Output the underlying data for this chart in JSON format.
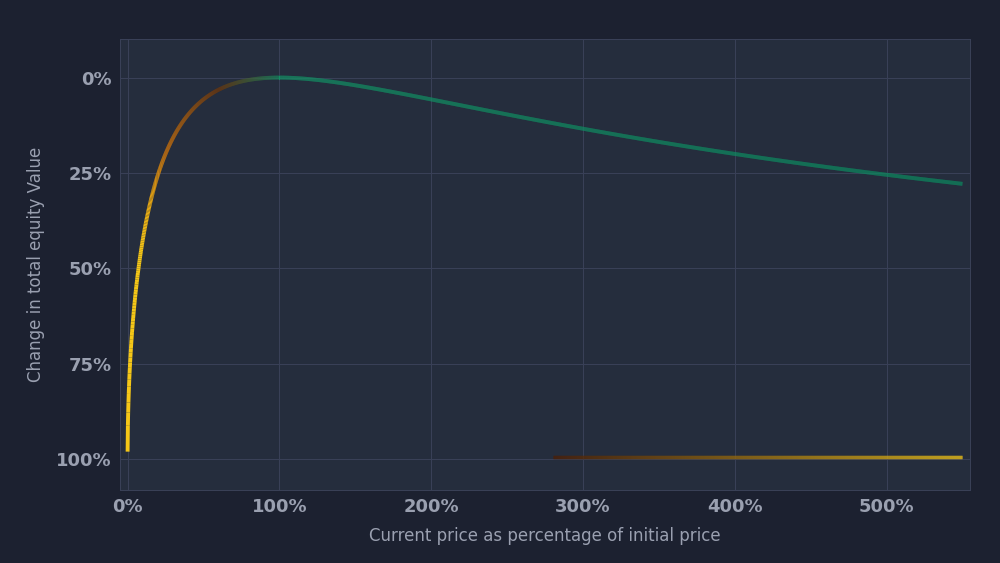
{
  "background_color": "#1c2130",
  "plot_bg_color": "#252d3d",
  "grid_color": "#3a4158",
  "text_color": "#9aa0b0",
  "xlabel": "Current price as percentage of initial price",
  "ylabel": "Change in total equity Value",
  "xticks": [
    0,
    1,
    2,
    3,
    4,
    5
  ],
  "xtick_labels": [
    "0%",
    "100%",
    "200%",
    "300%",
    "400%",
    "500%"
  ],
  "yticks": [
    0,
    -0.25,
    -0.5,
    -0.75,
    -1.0
  ],
  "ytick_labels": [
    "0%",
    "25%",
    "50%",
    "75%",
    "100%"
  ],
  "xmin": -0.05,
  "xmax": 5.55,
  "ymin": -1.08,
  "ymax": 0.1,
  "axis_fontsize": 12,
  "tick_fontsize": 13
}
